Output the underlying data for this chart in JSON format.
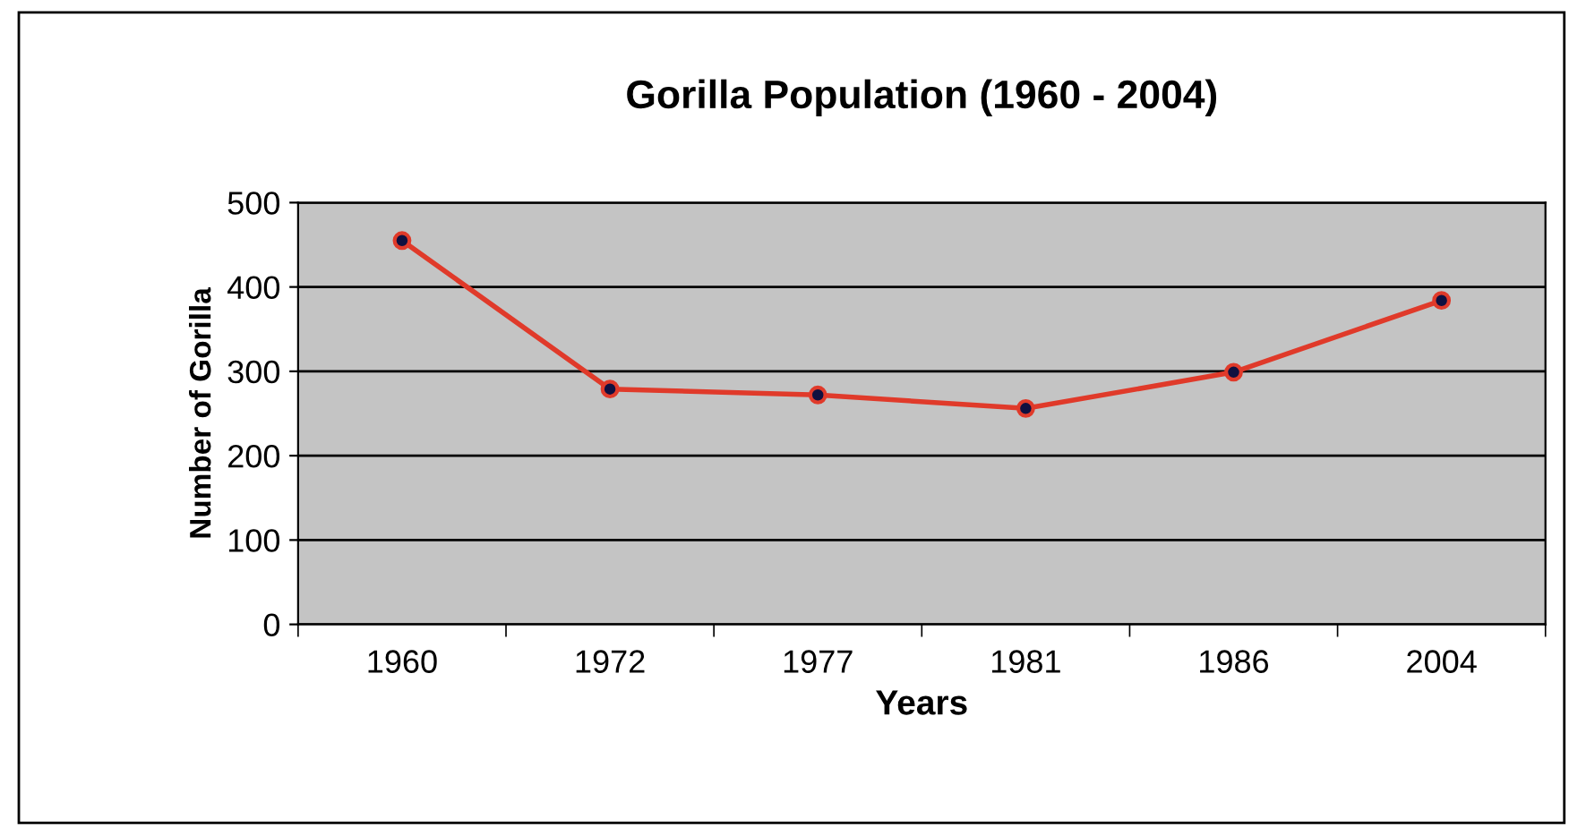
{
  "chart_data": {
    "type": "line",
    "title": "Gorilla Population (1960 - 2004)",
    "xlabel": "Years",
    "ylabel": "Number of Gorilla",
    "categories": [
      "1960",
      "1972",
      "1977",
      "1981",
      "1986",
      "2004"
    ],
    "series": [
      {
        "color": "#e03a2a",
        "values": [
          455,
          279,
          272,
          256,
          299,
          384
        ]
      }
    ],
    "ylim": [
      0,
      500
    ],
    "yticks": [
      0,
      100,
      200,
      300,
      400,
      500
    ],
    "grid": "y",
    "marker": "circle",
    "line_style": "solid",
    "legend": false
  }
}
